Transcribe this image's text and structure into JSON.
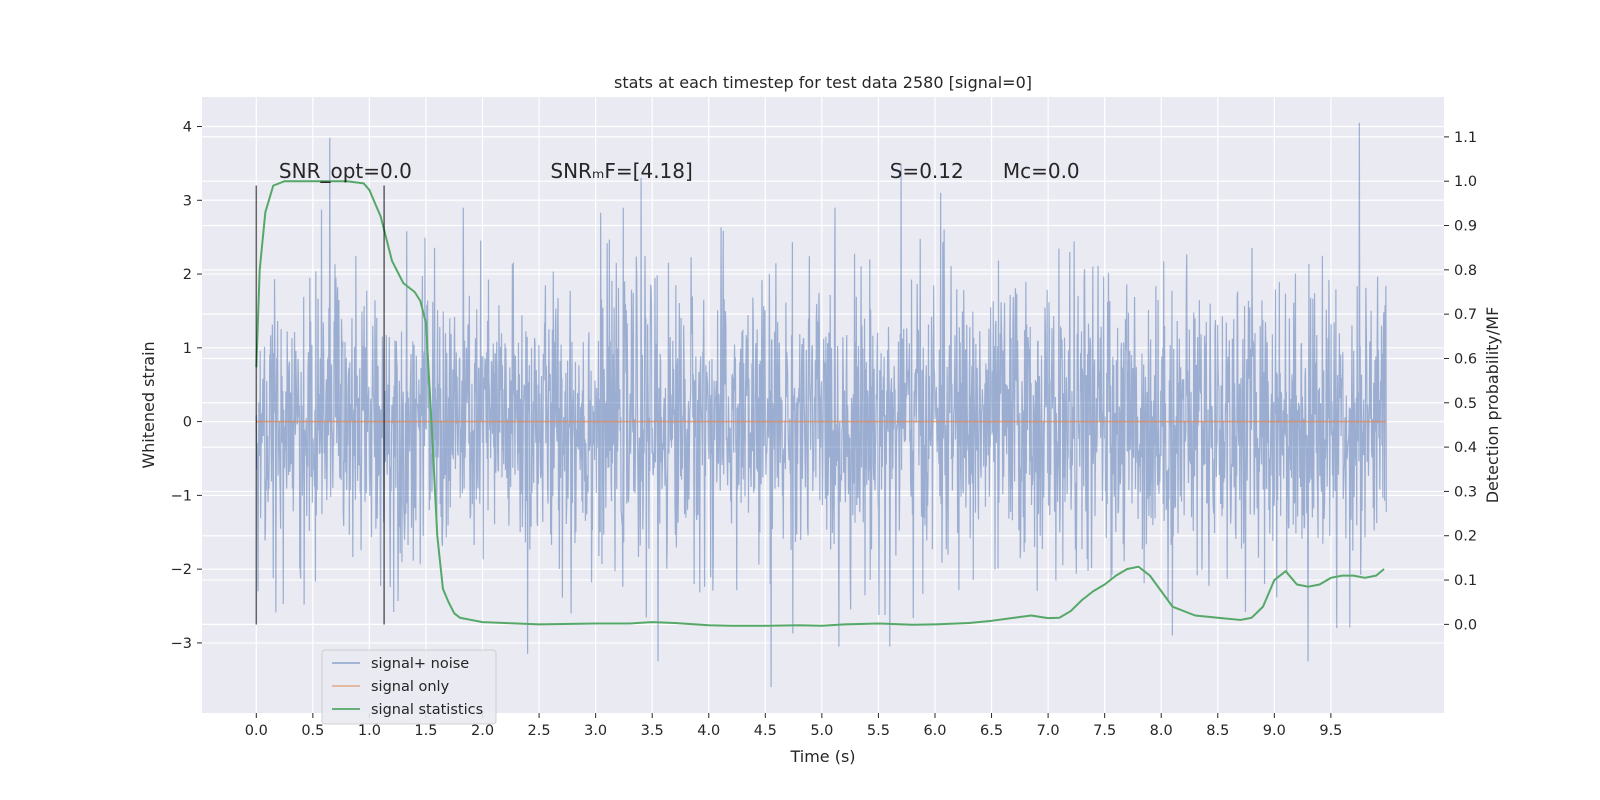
{
  "chart_data": {
    "type": "line",
    "title": "stats at each timestep for test data 2580 [signal=0]",
    "xlabel": "Time (s)",
    "ylabel": "Whitened strain",
    "y2label": "Detection probability/MF",
    "xlim": [
      -0.48,
      10.5
    ],
    "ylim": [
      -3.95,
      4.4
    ],
    "y2lim": [
      -0.2,
      1.19
    ],
    "x_ticks": [
      "0.0",
      "0.5",
      "1.0",
      "1.5",
      "2.0",
      "2.5",
      "3.0",
      "3.5",
      "4.0",
      "4.5",
      "5.0",
      "5.5",
      "6.0",
      "6.5",
      "7.0",
      "7.5",
      "8.0",
      "8.5",
      "9.0",
      "9.5"
    ],
    "y_ticks": [
      "4",
      "3",
      "2",
      "1",
      "0",
      "−1",
      "−2",
      "−3"
    ],
    "y2_ticks": [
      "1.1",
      "1.0",
      "0.9",
      "0.8",
      "0.7",
      "0.6",
      "0.5",
      "0.4",
      "0.3",
      "0.2",
      "0.1",
      "0.0"
    ],
    "grid": true,
    "legend_position": "lower-left",
    "annotations": [
      {
        "text": "SNR_opt=0.0",
        "x": 0.2,
        "y": 3.3
      },
      {
        "text": "SNRₘF=[4.18]",
        "x": 2.6,
        "y": 3.3
      },
      {
        "text": "S=0.12",
        "x": 5.6,
        "y": 3.3
      },
      {
        "text": "Mᴄ=0.0",
        "x": 6.6,
        "y": 3.3
      }
    ],
    "vertical_markers": [
      {
        "x": 0.0,
        "y_from": -2.75,
        "y_to": 3.2
      },
      {
        "x": 1.13,
        "y_from": -2.75,
        "y_to": 3.2
      }
    ],
    "noise_spikes": [
      {
        "x": 0.65,
        "y": 3.85
      },
      {
        "x": 9.75,
        "y": 4.05
      },
      {
        "x": 3.4,
        "y": 3.3
      },
      {
        "x": 5.7,
        "y": 3.5
      },
      {
        "x": 4.55,
        "y": -3.6
      },
      {
        "x": 9.3,
        "y": -3.25
      },
      {
        "x": 2.4,
        "y": -3.15
      },
      {
        "x": 3.55,
        "y": -3.25
      },
      {
        "x": 5.15,
        "y": -3.05
      },
      {
        "x": 5.6,
        "y": -3.05
      },
      {
        "x": 6.05,
        "y": 3.1
      },
      {
        "x": 8.1,
        "y": -2.9
      },
      {
        "x": 9.55,
        "y": -2.8
      }
    ],
    "series": [
      {
        "name": "signal+ noise",
        "color": "#4c72b0",
        "amplitude": 1.0,
        "x_range": [
          0.0,
          9.99
        ]
      },
      {
        "name": "signal only",
        "color": "#dd8452",
        "x": [
          0.0,
          9.99
        ],
        "y": [
          0.0,
          0.0
        ]
      },
      {
        "name": "signal statistics",
        "color": "#55a868",
        "axis": "right",
        "x": [
          0.0,
          0.03,
          0.08,
          0.15,
          0.25,
          0.4,
          0.6,
          0.8,
          0.95,
          1.0,
          1.05,
          1.1,
          1.15,
          1.2,
          1.3,
          1.4,
          1.45,
          1.5,
          1.55,
          1.6,
          1.65,
          1.7,
          1.75,
          1.8,
          1.9,
          2.0,
          2.2,
          2.5,
          3.0,
          3.3,
          3.5,
          3.7,
          4.0,
          4.2,
          4.5,
          4.8,
          5.0,
          5.2,
          5.5,
          5.8,
          6.0,
          6.3,
          6.5,
          6.7,
          6.85,
          7.0,
          7.1,
          7.2,
          7.3,
          7.4,
          7.5,
          7.6,
          7.7,
          7.8,
          7.85,
          7.9,
          8.0,
          8.1,
          8.3,
          8.5,
          8.7,
          8.8,
          8.9,
          9.0,
          9.1,
          9.2,
          9.3,
          9.4,
          9.5,
          9.6,
          9.7,
          9.8,
          9.9,
          9.97
        ],
        "y": [
          0.58,
          0.8,
          0.93,
          0.99,
          1.0,
          1.0,
          1.0,
          1.0,
          0.995,
          0.98,
          0.95,
          0.92,
          0.87,
          0.82,
          0.77,
          0.75,
          0.73,
          0.68,
          0.45,
          0.2,
          0.08,
          0.05,
          0.025,
          0.015,
          0.01,
          0.005,
          0.003,
          0.0,
          0.002,
          0.002,
          0.005,
          0.003,
          -0.002,
          -0.003,
          -0.003,
          -0.002,
          -0.003,
          0.0,
          0.002,
          -0.001,
          0.0,
          0.003,
          0.008,
          0.015,
          0.02,
          0.014,
          0.015,
          0.03,
          0.055,
          0.075,
          0.09,
          0.11,
          0.125,
          0.13,
          0.12,
          0.11,
          0.075,
          0.04,
          0.02,
          0.015,
          0.01,
          0.015,
          0.04,
          0.1,
          0.12,
          0.09,
          0.085,
          0.09,
          0.105,
          0.11,
          0.11,
          0.105,
          0.11,
          0.125
        ]
      }
    ]
  }
}
